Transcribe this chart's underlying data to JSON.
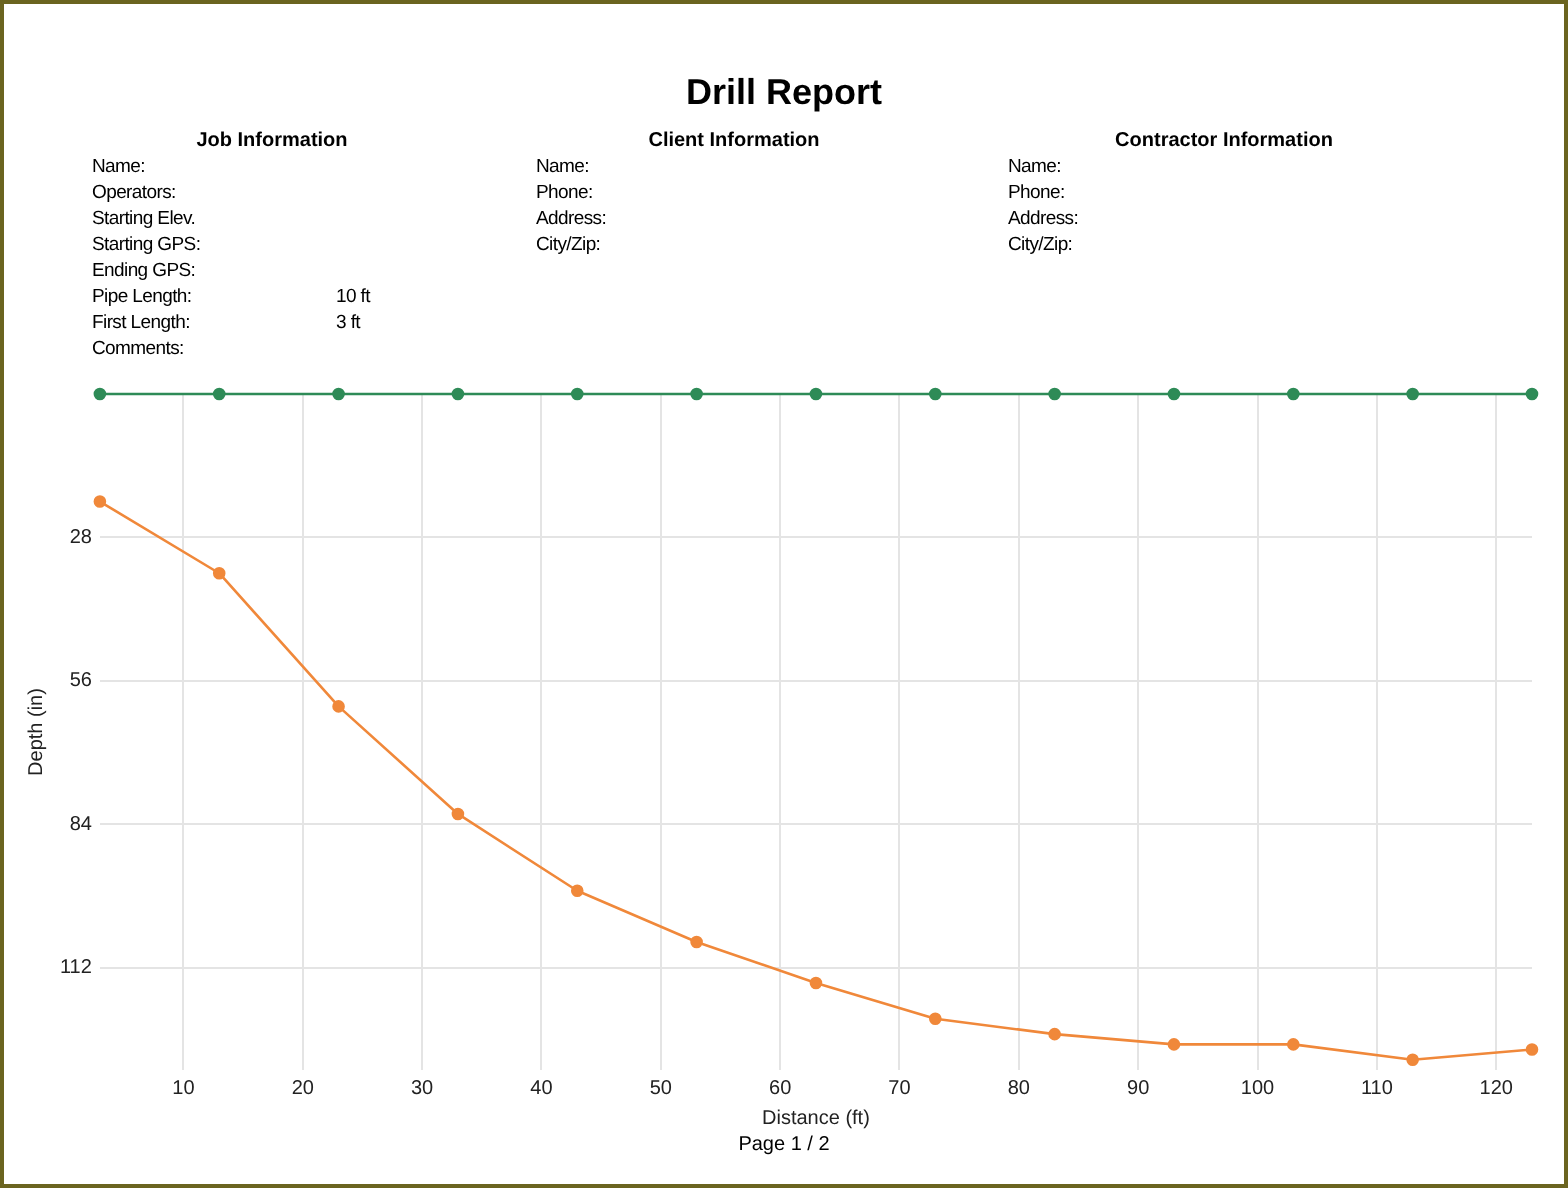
{
  "chart_data": {
    "type": "line",
    "title": "Drill Report",
    "annotations": [
      "Job Information",
      "Name:",
      "Operators:",
      "Starting Elev.",
      "Starting GPS:",
      "Ending GPS:",
      "Pipe Length:",
      "10 ft",
      "First Length:",
      "3 ft",
      "Comments:",
      "Client Information",
      "Name:",
      "Phone:",
      "Address:",
      "City/Zip:",
      "Contractor Information",
      "Name:",
      "Phone:",
      "Address:",
      "City/Zip:",
      "Page 1 / 2"
    ],
    "xlabel": "Distance (ft)",
    "ylabel": "Depth (in)",
    "x": [
      3,
      13,
      23,
      33,
      43,
      53,
      63,
      73,
      83,
      93,
      103,
      113,
      123
    ],
    "series": [
      {
        "color": "#2e8b57",
        "values": [
          0,
          0,
          0,
          0,
          0,
          0,
          0,
          0,
          0,
          0,
          0,
          0,
          0
        ]
      },
      {
        "color": "#f0883a",
        "values": [
          21,
          35,
          61,
          82,
          97,
          107,
          115,
          122,
          125,
          127,
          127,
          130,
          128
        ]
      }
    ],
    "xlim": [
      3,
      123
    ],
    "xticks": [
      10,
      20,
      30,
      40,
      50,
      60,
      70,
      80,
      90,
      100,
      110,
      120
    ],
    "ylim": [
      132,
      0
    ],
    "yticks": [
      28,
      56,
      84,
      112
    ],
    "grid": true,
    "legend": false,
    "marker": "circle",
    "line_style": "solid"
  }
}
